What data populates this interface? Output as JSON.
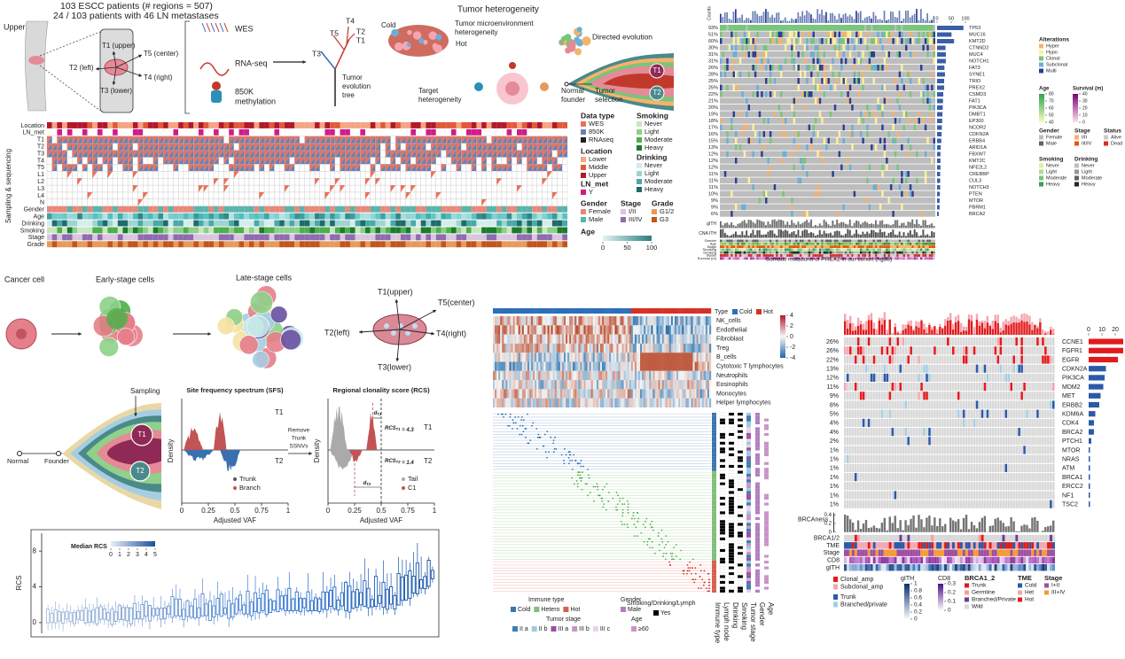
{
  "panel_a": {
    "cohort": [
      "103 ESCC patients (# regions = 507)",
      "24 / 103 patients with 46 LN metastases"
    ],
    "esophagus": "Upper",
    "regions": [
      "T1 (upper)",
      "T5 (center)",
      "T2 (left)",
      "T4 (right)",
      "T3 (lower)"
    ],
    "assays": [
      [
        "WES"
      ],
      [
        "RNA-seq"
      ],
      [
        "850K",
        "methylation"
      ]
    ],
    "tree_labels": [
      "T4",
      "T5",
      "T2",
      "T1",
      "T3"
    ],
    "tree_caption": [
      "Tumor",
      "evolution",
      "tree"
    ],
    "heterogeneity": {
      "title": "Tumor heterogeneity",
      "cold": "Cold",
      "hot": "Hot",
      "tme": [
        "Tumor microenvironment",
        "heterogeneity"
      ],
      "target": [
        "Target",
        "heterogeneity"
      ],
      "directed": "Directed evolution",
      "founder": [
        "Normal",
        "founder"
      ],
      "selection": [
        "Tumor",
        "selection"
      ],
      "clones": [
        "T1",
        "T2"
      ]
    },
    "grid_rows": [
      "Location",
      "LN_met",
      "T1",
      "T2",
      "T3",
      "T4",
      "T5",
      "L1",
      "L2",
      "L3",
      "L4",
      "N",
      "Gender",
      "Age",
      "Drinking",
      "Smoking",
      "Stage",
      "Grade"
    ],
    "grid_side": "Sampling & sequencing",
    "legend": [
      {
        "title": "Data type",
        "items": [
          {
            "label": "WES",
            "color": "#e8735a"
          },
          {
            "label": "850K",
            "color": "#6a7fb5"
          },
          {
            "label": "RNAseq",
            "color": "#222222"
          }
        ]
      },
      {
        "title": "Location",
        "items": [
          {
            "label": "Lower",
            "color": "#f4a582"
          },
          {
            "label": "Middle",
            "color": "#e05a3a"
          },
          {
            "label": "Upper",
            "color": "#b2182b"
          }
        ]
      },
      {
        "title": "LN_met",
        "items": [
          {
            "label": "Y",
            "color": "#d01c8b"
          }
        ]
      },
      {
        "title": "Gender",
        "items": [
          {
            "label": "Female",
            "color": "#e8887a"
          },
          {
            "label": "Male",
            "color": "#5ab4ac"
          }
        ]
      },
      {
        "title": "Stage",
        "items": [
          {
            "label": "I/II",
            "color": "#d8c5e0"
          },
          {
            "label": "III/IV",
            "color": "#8e6bb0"
          }
        ]
      },
      {
        "title": "Grade",
        "items": [
          {
            "label": "G1/2",
            "color": "#e59a5c"
          },
          {
            "label": "G3",
            "color": "#c0561e"
          }
        ]
      },
      {
        "title": "Smoking",
        "items": [
          {
            "label": "Never",
            "color": "#c8e6c0"
          },
          {
            "label": "Light",
            "color": "#8ccf8a"
          },
          {
            "label": "Moderate",
            "color": "#4daf4a"
          },
          {
            "label": "Heavy",
            "color": "#1b7a2e"
          }
        ]
      },
      {
        "title": "Drinking",
        "items": [
          {
            "label": "Never",
            "color": "#d4ecec"
          },
          {
            "label": "Light",
            "color": "#9fd3d3"
          },
          {
            "label": "Moderate",
            "color": "#4aa8a8"
          },
          {
            "label": "Heavy",
            "color": "#1e6b6b"
          }
        ]
      }
    ],
    "age": {
      "title": "Age",
      "ticks": [
        0,
        50,
        100
      ]
    }
  },
  "panel_b": {
    "count_label": "Counts",
    "genes": [
      "TP53",
      "MUC16",
      "KMT2D",
      "CTNND2",
      "MUC4",
      "NOTCH1",
      "FAT3",
      "SYNE1",
      "TRIO",
      "PREX2",
      "CSMD3",
      "FAT1",
      "PIK3CA",
      "DMBT1",
      "EP300",
      "NCOR2",
      "CDKN2A",
      "ERBB4",
      "ARID1A",
      "FBXW7",
      "KMT2C",
      "NFE2L2",
      "CREBBP",
      "CUL3",
      "NOTCH3",
      "PTEN",
      "MTOR",
      "PBRM1",
      "BRCA2"
    ],
    "frequency": [
      93,
      51,
      60,
      30,
      31,
      31,
      26,
      28,
      25,
      25,
      22,
      21,
      20,
      19,
      18,
      17,
      16,
      15,
      13,
      12,
      12,
      12,
      11,
      11,
      11,
      10,
      9,
      9,
      6
    ],
    "value_labels": [
      "93%",
      "51%",
      "60%",
      "30%",
      "31%",
      "31%",
      "26%",
      "28%",
      "25%",
      "25%",
      "22%",
      "21%",
      "20%",
      "19%",
      "18%",
      "17%",
      "16%",
      "15%",
      "13%",
      "12%",
      "12%",
      "12%",
      "11%",
      "11%",
      "11%",
      "10%",
      "9%",
      "9%",
      "6%"
    ],
    "xlim": [
      0,
      100
    ],
    "xticks": [
      0,
      50,
      100
    ],
    "tracks": [
      "gITH",
      "CNA ITH"
    ],
    "clinical_rows": [
      "Gender",
      "Age",
      "Stage",
      "Smoking",
      "Drinking",
      "Status",
      "Survival (m)"
    ],
    "caption": "Somatic mutations of PREX2 in our cohort (hg38)",
    "legend": [
      {
        "title": "Alterations",
        "items": [
          {
            "label": "Hyper",
            "color": "#f6b26b"
          },
          {
            "label": "Hypo",
            "color": "#fff09a"
          },
          {
            "label": "Clonal",
            "color": "#78c679"
          },
          {
            "label": "Subclonal",
            "color": "#6baed6"
          },
          {
            "label": "Multi",
            "color": "#2c3e8f"
          }
        ]
      },
      {
        "title": "Gender",
        "items": [
          {
            "label": "Female",
            "color": "#bdbdbd"
          },
          {
            "label": "Male",
            "color": "#636363"
          }
        ]
      },
      {
        "title": "Stage",
        "items": [
          {
            "label": "I/II",
            "color": "#fdae6b"
          },
          {
            "label": "III/IV",
            "color": "#e6550d"
          }
        ]
      },
      {
        "title": "Status",
        "items": [
          {
            "label": "Alive",
            "color": "#cccccc"
          },
          {
            "label": "Dead",
            "color": "#d7301f"
          }
        ]
      },
      {
        "title": "Smoking",
        "items": [
          {
            "label": "Never",
            "color": "#d9f0a3"
          },
          {
            "label": "Light",
            "color": "#addd8e"
          },
          {
            "label": "Moderate",
            "color": "#78c679"
          },
          {
            "label": "Heavy",
            "color": "#31a354"
          }
        ]
      },
      {
        "title": "Drinking",
        "items": [
          {
            "label": "Never",
            "color": "#bdbdbd"
          },
          {
            "label": "Light",
            "color": "#969696"
          },
          {
            "label": "Moderate",
            "color": "#636363"
          },
          {
            "label": "Heavy",
            "color": "#252525"
          }
        ]
      }
    ],
    "age_scale": {
      "title": "Age",
      "ticks": [
        80,
        70,
        60,
        50,
        40
      ]
    },
    "survival_scale": {
      "title": "Survival (m)",
      "ticks": [
        40,
        30,
        20,
        10,
        0
      ]
    }
  },
  "panel_c": {
    "stages": [
      "Cancer cell",
      "Early-stage cells",
      "Late-stage cells"
    ],
    "regions": [
      "T1(upper)",
      "T5(center)",
      "T2(left)",
      "T4(right)",
      "T3(lower)"
    ],
    "sampling": "Sampling",
    "fish": {
      "normal": "Normal",
      "founder": "Founder",
      "clones": [
        "T1",
        "T2"
      ]
    },
    "sfs": {
      "title": "Site frequency spectrum (SFS)",
      "ylabel": "Density",
      "xlabel": "Adjusted VAF",
      "regions": [
        "T1",
        "T2"
      ],
      "legend": [
        "Trunk",
        "Branch"
      ],
      "xlim": [
        0,
        1
      ],
      "xticks": [
        0,
        0.25,
        0.5,
        0.75,
        1
      ]
    },
    "transition": [
      "Remove",
      "Trunk",
      "SSNVs"
    ],
    "rcs": {
      "title": "Regional clonality score (RCS)",
      "ylabel": "Density",
      "xlabel": "Adjusted VAF",
      "regions": [
        "T1",
        "T2"
      ],
      "legend": [
        "Tail",
        "C1"
      ],
      "xlim": [
        0,
        1
      ],
      "xticks": [
        0,
        0.25,
        0.5,
        0.75,
        1
      ],
      "scores": [
        {
          "base": "RCS",
          "sub": "T1",
          "rest": " = 4.3"
        },
        {
          "base": "RCS",
          "sub": "T2",
          "rest": " = 1.4"
        }
      ],
      "distances": [
        {
          "base": "d",
          "sub": "T1"
        },
        {
          "base": "d",
          "sub": "T2"
        }
      ]
    },
    "boxplot": {
      "colorbar_title": "Median RCS",
      "colorbar_ticks": [
        0,
        1,
        2,
        3,
        4,
        5
      ],
      "ylabel": "RCS",
      "ylim": [
        -1.2,
        10
      ],
      "yticks": [
        0,
        4,
        8
      ]
    }
  },
  "panel_d": {
    "type_legend": {
      "title": "Type",
      "items": [
        {
          "label": "Cold",
          "color": "#2c6fb7"
        },
        {
          "label": "Hot",
          "color": "#d73027"
        }
      ]
    },
    "cell_types": [
      "NK_cells",
      "Endothelial",
      "Fibroblast",
      "Treg",
      "B_cells",
      "Cytotoxic T lymphocytes",
      "Neutrophils",
      "Eosinophils",
      "Monocytes",
      "Helper lymphocytes"
    ],
    "colorbar_ticks": [
      4,
      2,
      0,
      -2,
      -4
    ],
    "legend": [
      {
        "title": "Immune type",
        "items": [
          {
            "label": "Cold",
            "color": "#3b75af"
          },
          {
            "label": "Hetero",
            "color": "#7fbf7b"
          },
          {
            "label": "Hot",
            "color": "#d6604d"
          }
        ]
      },
      {
        "title": "Gender",
        "items": [
          {
            "label": "Male",
            "color": "#b27fc1"
          }
        ]
      },
      {
        "title": "Smoking/Drinking/Lymph",
        "items": [
          {
            "label": "Yes",
            "color": "#000000"
          }
        ]
      },
      {
        "title": "Tumor stage",
        "items": [
          {
            "label": "II a",
            "color": "#3c7fb1"
          },
          {
            "label": "II b",
            "color": "#9ecae1"
          },
          {
            "label": "III a",
            "color": "#9e4fa3"
          },
          {
            "label": "III b",
            "color": "#c994c7"
          },
          {
            "label": "III c",
            "color": "#e7d4e8"
          }
        ]
      },
      {
        "title": "Age",
        "items": [
          {
            "label": "≥60",
            "color": "#c994c7"
          }
        ]
      }
    ],
    "columns": [
      "Immune type",
      "Lymph node",
      "Drinking",
      "Smoking",
      "Tumor stage",
      "Gender",
      "Age"
    ]
  },
  "panel_e": {
    "genes": [
      "CCNE1",
      "FGFR1",
      "EGFR",
      "CDKN2A",
      "PIK3CA",
      "MDM2",
      "MET",
      "ERBB2",
      "KDM6A",
      "CDK4",
      "BRCA2",
      "PTCH1",
      "MTOR",
      "NRAS",
      "ATM",
      "BRCA1",
      "ERCC2",
      "NF1",
      "TSC2"
    ],
    "frequency": [
      26,
      26,
      22,
      13,
      12,
      11,
      9,
      8,
      5,
      4,
      4,
      2,
      1,
      1,
      1,
      1,
      1,
      1,
      1
    ],
    "value_labels": [
      "26%",
      "26%",
      "22%",
      "13%",
      "12%",
      "11%",
      "9%",
      "8%",
      "5%",
      "4%",
      "4%",
      "2%",
      "1%",
      "1%",
      "1%",
      "1%",
      "1%",
      "1%",
      "1%"
    ],
    "xlim": [
      0,
      26
    ],
    "xticks": [
      0,
      10,
      20
    ],
    "brcaness": {
      "label": "BRCAness",
      "ticks": [
        0.4,
        0.2,
        0
      ]
    },
    "tracks": [
      "BRCA1/2",
      "TME",
      "Stage",
      "CD8",
      "gITH"
    ],
    "alterations": [
      {
        "label": "Clonal_amp",
        "color": "#e31a1c"
      },
      {
        "label": "Subclonal_amp",
        "color": "#f4a6b0"
      },
      {
        "label": "Trunk",
        "color": "#2b5aa8"
      },
      {
        "label": "Branched/private",
        "color": "#a6cee3"
      }
    ],
    "gith_scale": {
      "title": "gITH",
      "ticks": [
        1,
        0.8,
        0.6,
        0.4,
        0.2,
        0
      ]
    },
    "cd8_scale": {
      "title": "CD8",
      "ticks": [
        0.3,
        0.2,
        0.1,
        0
      ]
    },
    "legend": [
      {
        "title": "BRCA1_2",
        "items": [
          {
            "label": "Trunk",
            "color": "#e31a1c"
          },
          {
            "label": "Germline",
            "color": "#fb9a99"
          },
          {
            "label": "Branched/Private",
            "color": "#6a3d9a"
          },
          {
            "label": "Wild",
            "color": "#d9d9d9"
          }
        ]
      },
      {
        "title": "TME",
        "items": [
          {
            "label": "Cold",
            "color": "#2b5aa8"
          },
          {
            "label": "Het",
            "color": "#f4a6b0"
          },
          {
            "label": "Hot",
            "color": "#e31a1c"
          }
        ]
      },
      {
        "title": "Stage",
        "items": [
          {
            "label": "I+II",
            "color": "#9e4fa3"
          },
          {
            "label": "III+IV",
            "color": "#f39c34"
          }
        ]
      }
    ]
  }
}
